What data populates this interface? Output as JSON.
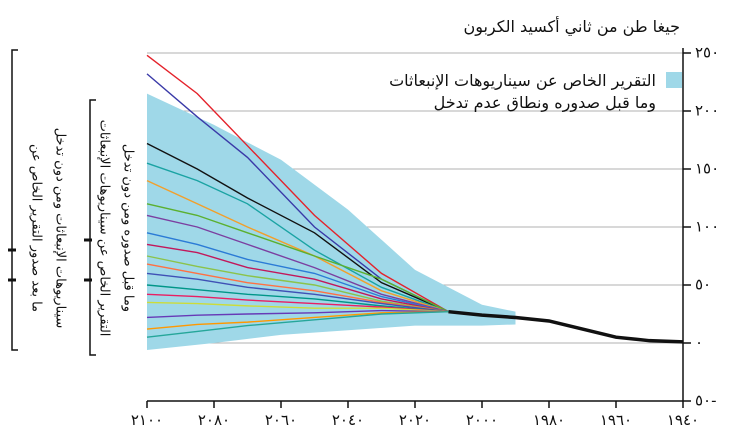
{
  "chart_data": {
    "type": "line",
    "title": "جيغا طن من ثاني أكسيد الكربون",
    "side_labels": [
      [
        "ما بعد صدور التقرير الخاص عن",
        "سيناريوهات الإنبعاثات ومن دون تدخل"
      ],
      [
        "التقرير الخاص عن سيناريوهات الإنبعاثات",
        "وما قبل صدوره ومن دون تدخل"
      ]
    ],
    "xlim": [
      2100,
      1940
    ],
    "ylim": [
      -50,
      250
    ],
    "xticks": [
      {
        "value": 2100,
        "label": "٢١٠٠"
      },
      {
        "value": 2080,
        "label": "٢٠٨٠"
      },
      {
        "value": 2060,
        "label": "٢٠٦٠"
      },
      {
        "value": 2040,
        "label": "٢٠٤٠"
      },
      {
        "value": 2020,
        "label": "٢٠٢٠"
      },
      {
        "value": 2000,
        "label": "٢٠٠٠"
      },
      {
        "value": 1980,
        "label": "١٩٨٠"
      },
      {
        "value": 1960,
        "label": "١٩٦٠"
      },
      {
        "value": 1940,
        "label": "١٩٤٠"
      }
    ],
    "yticks": [
      {
        "value": -50,
        "label": "٥٠-"
      },
      {
        "value": 0,
        "label": "٠"
      },
      {
        "value": 50,
        "label": "٥٠"
      },
      {
        "value": 100,
        "label": "١٠٠"
      },
      {
        "value": 150,
        "label": "١٥٠"
      },
      {
        "value": 200,
        "label": "٢٠٠"
      },
      {
        "value": 250,
        "label": "٢٥٠"
      }
    ],
    "grid": true,
    "band": {
      "name": [
        "التقرير الخاص عن سيناريوهات الإنبعاثات",
        "وما قبل صدوره ونطاق عدم تدخل"
      ],
      "color": "#9fd8e8",
      "x": [
        1990,
        2000,
        2020,
        2040,
        2060,
        2080,
        2100
      ],
      "upper": [
        27,
        33,
        63,
        115,
        158,
        188,
        215
      ],
      "lower": [
        16,
        15,
        15,
        11,
        7,
        0,
        -6
      ]
    },
    "history": {
      "color": "#111111",
      "x": [
        1940,
        1950,
        1960,
        1970,
        1980,
        1990,
        2000,
        2010
      ],
      "values": [
        1,
        2,
        5,
        12,
        19,
        22,
        24,
        27
      ]
    },
    "x": [
      2010,
      2030,
      2050,
      2070,
      2085,
      2100
    ],
    "series": [
      {
        "color": "#e4222b",
        "values": [
          27,
          60,
          110,
          170,
          215,
          248
        ]
      },
      {
        "color": "#3a3aa8",
        "values": [
          27,
          55,
          100,
          160,
          195,
          232
        ]
      },
      {
        "color": "#111111",
        "values": [
          27,
          52,
          95,
          125,
          150,
          172
        ]
      },
      {
        "color": "#1aa3a3",
        "values": [
          27,
          48,
          80,
          120,
          140,
          155
        ]
      },
      {
        "color": "#f29f2a",
        "values": [
          27,
          45,
          75,
          100,
          120,
          140
        ]
      },
      {
        "color": "#5bb030",
        "values": [
          27,
          55,
          75,
          95,
          110,
          120
        ]
      },
      {
        "color": "#7b3fa0",
        "values": [
          27,
          42,
          65,
          85,
          100,
          110
        ]
      },
      {
        "color": "#2b7bd6",
        "values": [
          27,
          40,
          60,
          72,
          85,
          95
        ]
      },
      {
        "color": "#c2185b",
        "values": [
          27,
          38,
          55,
          65,
          78,
          85
        ]
      },
      {
        "color": "#8bc34a",
        "values": [
          27,
          36,
          50,
          58,
          66,
          75
        ]
      },
      {
        "color": "#ff7043",
        "values": [
          27,
          35,
          45,
          52,
          60,
          68
        ]
      },
      {
        "color": "#3f51b5",
        "values": [
          27,
          34,
          42,
          48,
          55,
          60
        ]
      },
      {
        "color": "#009688",
        "values": [
          27,
          32,
          38,
          42,
          46,
          50
        ]
      },
      {
        "color": "#e91e63",
        "values": [
          27,
          31,
          34,
          37,
          40,
          42
        ]
      },
      {
        "color": "#cddc39",
        "values": [
          27,
          30,
          30,
          32,
          34,
          35
        ]
      },
      {
        "color": "#673ab7",
        "values": [
          27,
          28,
          26,
          25,
          24,
          22
        ]
      },
      {
        "color": "#ff9800",
        "values": [
          27,
          26,
          22,
          18,
          16,
          12
        ]
      },
      {
        "color": "#26a69a",
        "values": [
          27,
          25,
          20,
          15,
          10,
          5
        ]
      }
    ]
  }
}
